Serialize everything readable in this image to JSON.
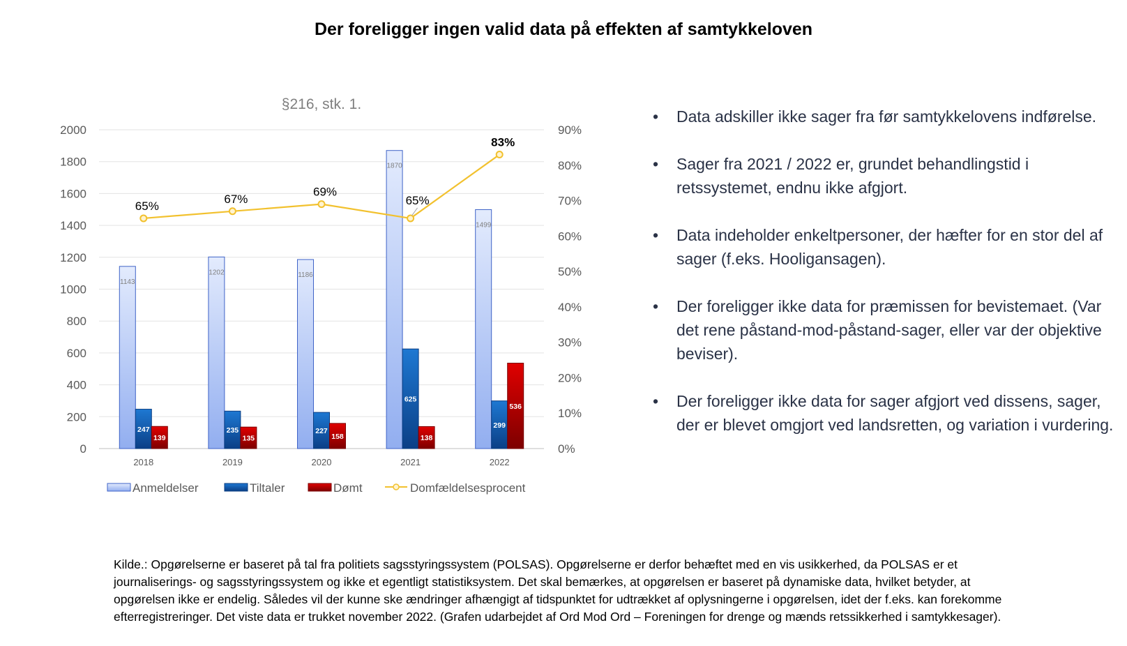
{
  "page": {
    "title": "Der foreligger ingen valid data på effekten af samtykkeloven",
    "bullets": [
      "Data adskiller ikke sager fra før samtykkelovens indførelse.",
      "Sager fra 2021 / 2022 er, grundet behandlingstid i retssystemet, endnu ikke afgjort.",
      "Data indeholder enkeltpersoner, der hæfter for en stor del af sager (f.eks. Hooligansagen).",
      "Der foreligger ikke data for præmissen for bevistemaet. (Var det rene påstand-mod-påstand-sager, eller var der objektive beviser).",
      "Der foreligger ikke data for sager afgjort ved dissens, sager, der er blevet omgjort ved landsretten, og variation i vurdering."
    ],
    "source": "Kilde.: Opgørelserne er baseret på tal fra politiets sagsstyringssystem (POLSAS). Opgørelserne er derfor behæftet med en vis usikkerhed, da POLSAS er et journaliserings- og sagsstyringssystem og ikke et egentligt statistiksystem. Det skal bemærkes, at opgørelsen er baseret på dynamiske data, hvilket betyder, at opgørelsen ikke er endelig. Således vil der kunne ske ændringer afhængigt af tidspunktet for udtrækket af oplysningerne i opgørelsen, idet der f.eks. kan forekomme efterregistreringer. Det viste data er trukket november 2022. (Grafen udarbejdet af Ord Mod Ord – Foreningen for drenge og mænds retssikkerhed i samtykkesager)."
  },
  "chart_data": {
    "type": "bar",
    "title": "§216, stk. 1.",
    "categories": [
      "2018",
      "2019",
      "2020",
      "2021",
      "2022"
    ],
    "series": [
      {
        "name": "Anmeldelser",
        "values": [
          1143,
          1202,
          1186,
          1870,
          1499
        ],
        "color": "#a9bff2"
      },
      {
        "name": "Tiltaler",
        "values": [
          247,
          235,
          227,
          625,
          299
        ],
        "color": "#1565c0"
      },
      {
        "name": "Dømt",
        "values": [
          139,
          135,
          158,
          138,
          536
        ],
        "color": "#c00000"
      }
    ],
    "line_series": {
      "name": "Domfældelsesprocent",
      "values": [
        65,
        67,
        69,
        65,
        83
      ],
      "labels": [
        "65%",
        "67%",
        "69%",
        "65%",
        "83%"
      ],
      "color": "#f2c12e",
      "axis": "right"
    },
    "y_left": {
      "min": 0,
      "max": 2000,
      "ticks": [
        0,
        200,
        400,
        600,
        800,
        1000,
        1200,
        1400,
        1600,
        1800,
        2000
      ]
    },
    "y_right": {
      "min": 0,
      "max": 90,
      "ticks": [
        "0%",
        "10%",
        "20%",
        "30%",
        "40%",
        "50%",
        "60%",
        "70%",
        "80%",
        "90%"
      ]
    },
    "grid": true,
    "legend_position": "bottom"
  }
}
